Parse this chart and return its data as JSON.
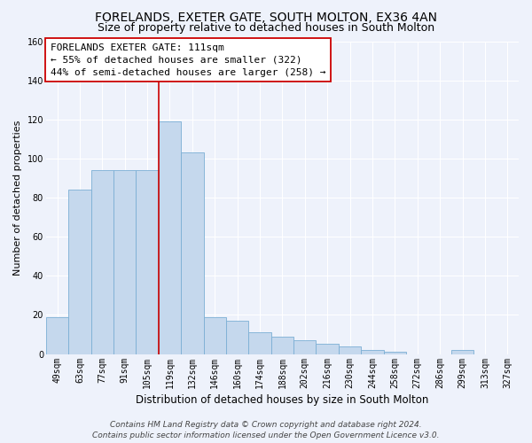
{
  "title": "FORELANDS, EXETER GATE, SOUTH MOLTON, EX36 4AN",
  "subtitle": "Size of property relative to detached houses in South Molton",
  "xlabel": "Distribution of detached houses by size in South Molton",
  "ylabel": "Number of detached properties",
  "bar_labels": [
    "49sqm",
    "63sqm",
    "77sqm",
    "91sqm",
    "105sqm",
    "119sqm",
    "132sqm",
    "146sqm",
    "160sqm",
    "174sqm",
    "188sqm",
    "202sqm",
    "216sqm",
    "230sqm",
    "244sqm",
    "258sqm",
    "272sqm",
    "286sqm",
    "299sqm",
    "313sqm",
    "327sqm"
  ],
  "bar_values": [
    19,
    84,
    94,
    94,
    94,
    119,
    103,
    19,
    17,
    11,
    9,
    7,
    5,
    4,
    2,
    1,
    0,
    0,
    2,
    0,
    0
  ],
  "bar_color": "#c5d8ed",
  "bar_edge_color": "#7bafd4",
  "reference_line_x": 4.5,
  "reference_line_color": "#cc0000",
  "ylim": [
    0,
    160
  ],
  "yticks": [
    0,
    20,
    40,
    60,
    80,
    100,
    120,
    140,
    160
  ],
  "annotation_title": "FORELANDS EXETER GATE: 111sqm",
  "annotation_line1": "← 55% of detached houses are smaller (322)",
  "annotation_line2": "44% of semi-detached houses are larger (258) →",
  "annotation_box_facecolor": "#ffffff",
  "annotation_box_edgecolor": "#cc0000",
  "footer_line1": "Contains HM Land Registry data © Crown copyright and database right 2024.",
  "footer_line2": "Contains public sector information licensed under the Open Government Licence v3.0.",
  "background_color": "#eef2fb",
  "grid_color": "#ffffff",
  "title_fontsize": 10,
  "subtitle_fontsize": 9,
  "xlabel_fontsize": 8.5,
  "ylabel_fontsize": 8,
  "tick_fontsize": 7,
  "annotation_fontsize": 8,
  "footer_fontsize": 6.5
}
